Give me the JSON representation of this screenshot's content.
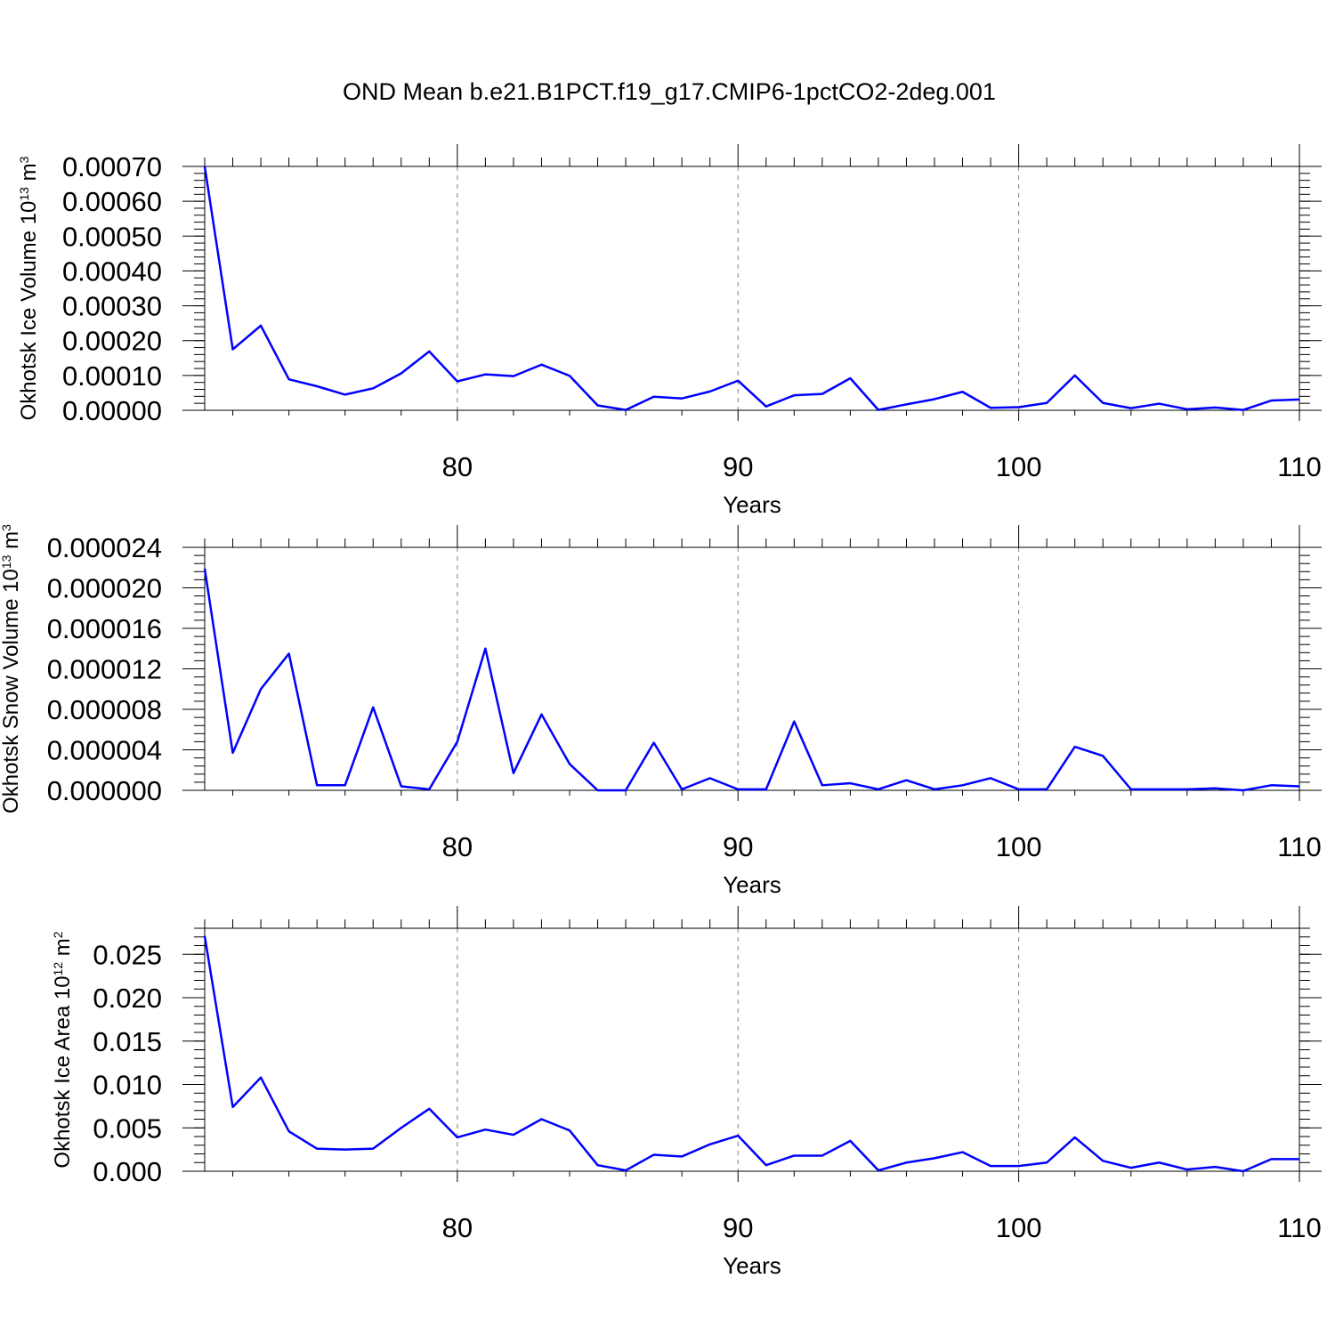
{
  "colors": {
    "line": "#0000ff",
    "axis": "#000000",
    "grid": "#808080",
    "background": "#ffffff"
  },
  "chart_data": {
    "title": "OND Mean b.e21.B1PCT.f19_g17.CMIP6-1pctCO2-2deg.001",
    "panels": [
      {
        "type": "line",
        "ylabel": {
          "text": "Okhotsk Ice Volume 10",
          "exp": "13",
          "unit": " m",
          "unit_exp": "3"
        },
        "xlabel": "Years",
        "xlim": [
          71,
          110
        ],
        "ylim": [
          0,
          0.0007
        ],
        "yticks": [
          0,
          0.0001,
          0.0002,
          0.0003,
          0.0004,
          0.0005,
          0.0006,
          0.0007
        ],
        "ytick_labels": [
          "0.00000",
          "0.00010",
          "0.00020",
          "0.00030",
          "0.00040",
          "0.00050",
          "0.00060",
          "0.00070"
        ],
        "yminor": 2e-05,
        "xticks": [
          80,
          90,
          100,
          110
        ],
        "xtick_labels": [
          "80",
          "90",
          "100",
          "110"
        ],
        "grid": "vertical dashed at major x ticks",
        "x": [
          71,
          72,
          73,
          74,
          75,
          76,
          77,
          78,
          79,
          80,
          81,
          82,
          83,
          84,
          85,
          86,
          87,
          88,
          89,
          90,
          91,
          92,
          93,
          94,
          95,
          96,
          97,
          98,
          99,
          100,
          101,
          102,
          103,
          104,
          105,
          106,
          107,
          108,
          109,
          110
        ],
        "series": [
          {
            "values": [
              0.0007,
              0.000175,
              0.000243,
              8.9e-05,
              6.9e-05,
              4.5e-05,
              6.3e-05,
              0.000106,
              0.000169,
              8.3e-05,
              0.000103,
              9.8e-05,
              0.000131,
              9.9e-05,
              1.4e-05,
              1e-06,
              3.9e-05,
              3.4e-05,
              5.4e-05,
              8.5e-05,
              1.1e-05,
              4.3e-05,
              4.7e-05,
              9.2e-05,
              1e-06,
              1.7e-05,
              3.2e-05,
              5.3e-05,
              7e-06,
              9e-06,
              2.1e-05,
              0.0001,
              2.1e-05,
              6e-06,
              1.9e-05,
              3e-06,
              8e-06,
              1e-06,
              2.8e-05,
              3.1e-05
            ]
          }
        ]
      },
      {
        "type": "line",
        "ylabel": {
          "text": "Okhotsk Snow Volume 10",
          "exp": "13",
          "unit": " m",
          "unit_exp": "3"
        },
        "xlabel": "Years",
        "xlim": [
          71,
          110
        ],
        "ylim": [
          0,
          2.4e-05
        ],
        "yticks": [
          0,
          4e-06,
          8e-06,
          1.2e-05,
          1.6e-05,
          2e-05,
          2.4e-05
        ],
        "ytick_labels": [
          "0.000000",
          "0.000004",
          "0.000008",
          "0.000012",
          "0.000016",
          "0.000020",
          "0.000024"
        ],
        "yminor": 8e-07,
        "xticks": [
          80,
          90,
          100,
          110
        ],
        "xtick_labels": [
          "80",
          "90",
          "100",
          "110"
        ],
        "grid": "vertical dashed at major x ticks",
        "x": [
          71,
          72,
          73,
          74,
          75,
          76,
          77,
          78,
          79,
          80,
          81,
          82,
          83,
          84,
          85,
          86,
          87,
          88,
          89,
          90,
          91,
          92,
          93,
          94,
          95,
          96,
          97,
          98,
          99,
          100,
          101,
          102,
          103,
          104,
          105,
          106,
          107,
          108,
          109,
          110
        ],
        "series": [
          {
            "values": [
              2.19e-05,
              3.7e-06,
              1e-05,
              1.35e-05,
              5e-07,
              5e-07,
              8.2e-06,
              4e-07,
              1e-07,
              4.8e-06,
              1.4e-05,
              1.7e-06,
              7.5e-06,
              2.6e-06,
              0.0,
              0.0,
              4.7e-06,
              1e-07,
              1.2e-06,
              1e-07,
              1e-07,
              6.8e-06,
              5e-07,
              7e-07,
              1e-07,
              1e-06,
              1e-07,
              5e-07,
              1.2e-06,
              1e-07,
              1e-07,
              4.3e-06,
              3.4e-06,
              1e-07,
              1e-07,
              1e-07,
              2e-07,
              0.0,
              5e-07,
              4e-07
            ]
          }
        ]
      },
      {
        "type": "line",
        "ylabel": {
          "text": "Okhotsk Ice Area 10",
          "exp": "12",
          "unit": " m",
          "unit_exp": "2"
        },
        "xlabel": "Years",
        "xlim": [
          71,
          110
        ],
        "ylim": [
          0,
          0.028
        ],
        "yticks": [
          0,
          0.005,
          0.01,
          0.015,
          0.02,
          0.025
        ],
        "ytick_labels": [
          "0.000",
          "0.005",
          "0.010",
          "0.015",
          "0.020",
          "0.025"
        ],
        "yminor": 0.001,
        "xticks": [
          80,
          90,
          100,
          110
        ],
        "xtick_labels": [
          "80",
          "90",
          "100",
          "110"
        ],
        "grid": "vertical dashed at major x ticks",
        "x": [
          71,
          72,
          73,
          74,
          75,
          76,
          77,
          78,
          79,
          80,
          81,
          82,
          83,
          84,
          85,
          86,
          87,
          88,
          89,
          90,
          91,
          92,
          93,
          94,
          95,
          96,
          97,
          98,
          99,
          100,
          101,
          102,
          103,
          104,
          105,
          106,
          107,
          108,
          109,
          110
        ],
        "series": [
          {
            "values": [
              0.0271,
              0.0074,
              0.0108,
              0.0046,
              0.0026,
              0.0025,
              0.0026,
              0.005,
              0.0072,
              0.0039,
              0.0048,
              0.0042,
              0.006,
              0.0047,
              0.0007,
              0.0001,
              0.0019,
              0.0017,
              0.0031,
              0.0041,
              0.0007,
              0.0018,
              0.0018,
              0.0035,
              0.0001,
              0.001,
              0.0015,
              0.0022,
              0.0006,
              0.0006,
              0.001,
              0.0039,
              0.0012,
              0.0004,
              0.001,
              0.0002,
              0.0005,
              0.0,
              0.0014,
              0.0014
            ]
          }
        ]
      }
    ]
  }
}
